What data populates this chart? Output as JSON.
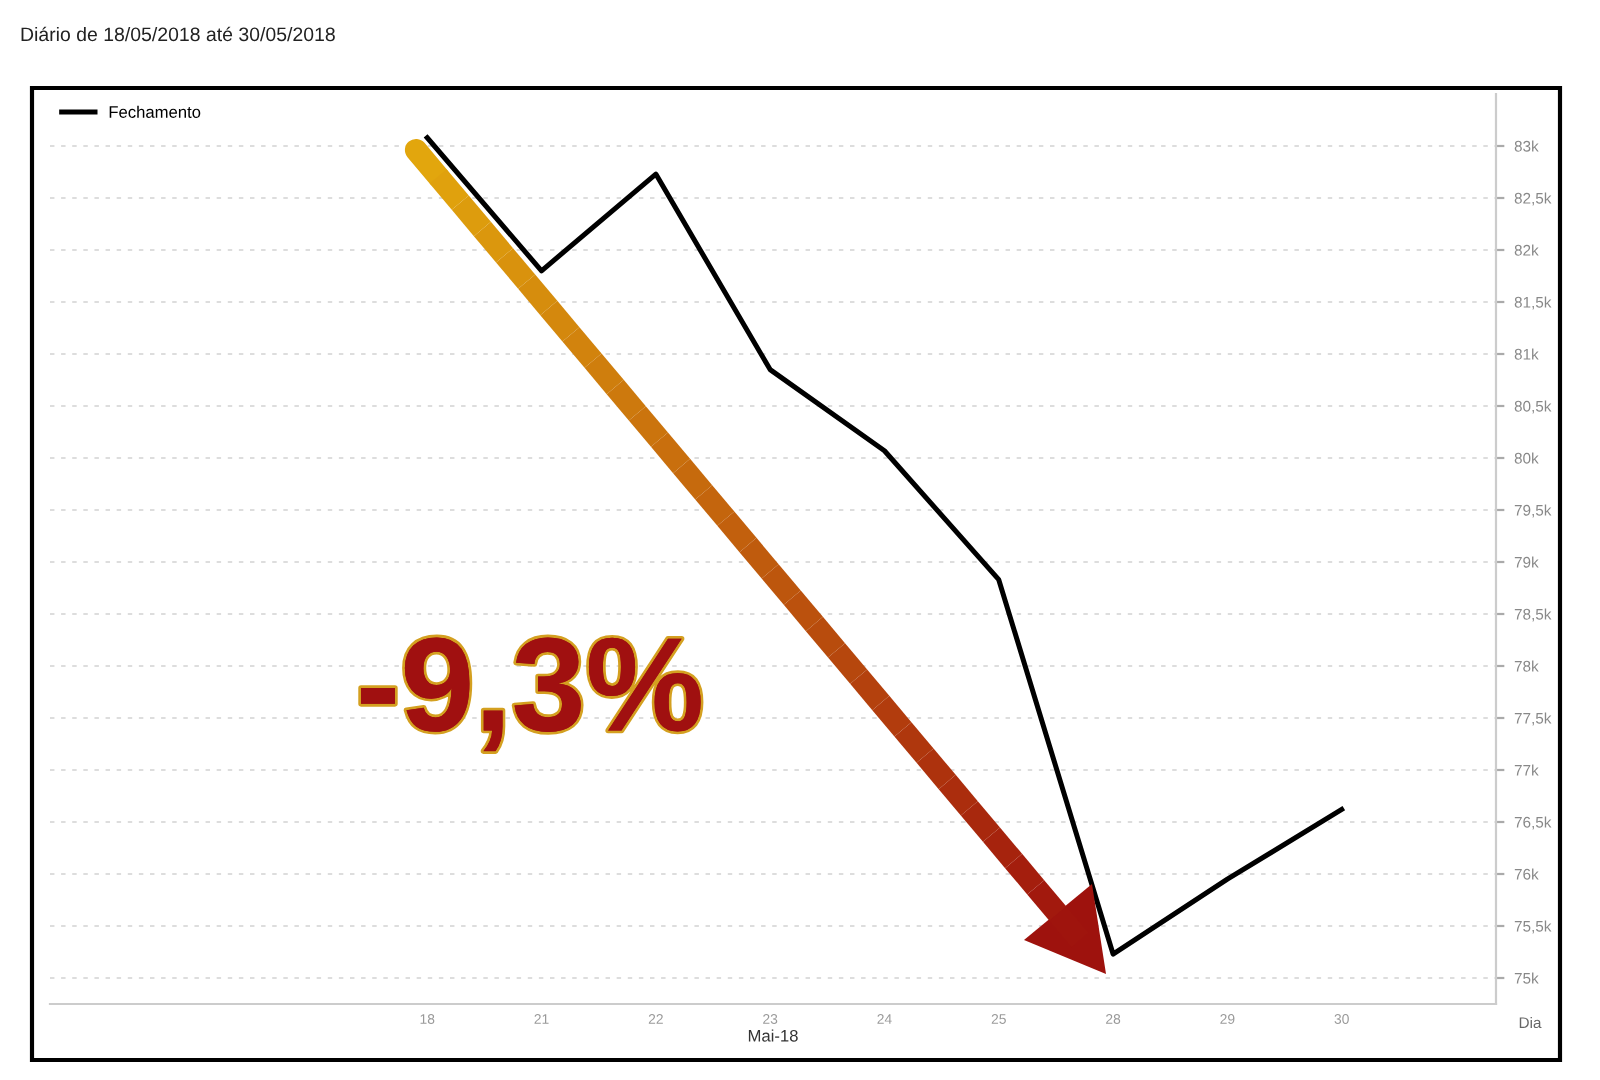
{
  "chart_data": {
    "type": "line",
    "subtitle": "Diário de 18/05/2018 até 30/05/2018",
    "xlabel": "Mai-18",
    "categories": [
      "18",
      "21",
      "22",
      "23",
      "24",
      "25",
      "28",
      "29",
      "30"
    ],
    "series": [
      {
        "name": "Fechamento",
        "color": "#000000",
        "values": [
          83080,
          81800,
          82730,
          80850,
          80070,
          78830,
          75230,
          75950,
          76620
        ]
      }
    ],
    "ylim": [
      74750,
      83500
    ],
    "yticks": [
      {
        "value": 75000,
        "label": "75k"
      },
      {
        "value": 75500,
        "label": "75,5k"
      },
      {
        "value": 76000,
        "label": "76k"
      },
      {
        "value": 76500,
        "label": "76,5k"
      },
      {
        "value": 77000,
        "label": "77k"
      },
      {
        "value": 77500,
        "label": "77,5k"
      },
      {
        "value": 78000,
        "label": "78k"
      },
      {
        "value": 78500,
        "label": "78,5k"
      },
      {
        "value": 79000,
        "label": "79k"
      },
      {
        "value": 79500,
        "label": "79,5k"
      },
      {
        "value": 80000,
        "label": "80k"
      },
      {
        "value": 80500,
        "label": "80,5k"
      },
      {
        "value": 81000,
        "label": "81k"
      },
      {
        "value": 81500,
        "label": "81,5k"
      },
      {
        "value": 82000,
        "label": "82k"
      },
      {
        "value": 82500,
        "label": "82,5k"
      },
      {
        "value": 83000,
        "label": "83k"
      }
    ],
    "grid": "y",
    "legend": "top left",
    "marker": "none",
    "line_style": "solid",
    "annotations": [
      "-9,3%",
      "Dia"
    ]
  }
}
